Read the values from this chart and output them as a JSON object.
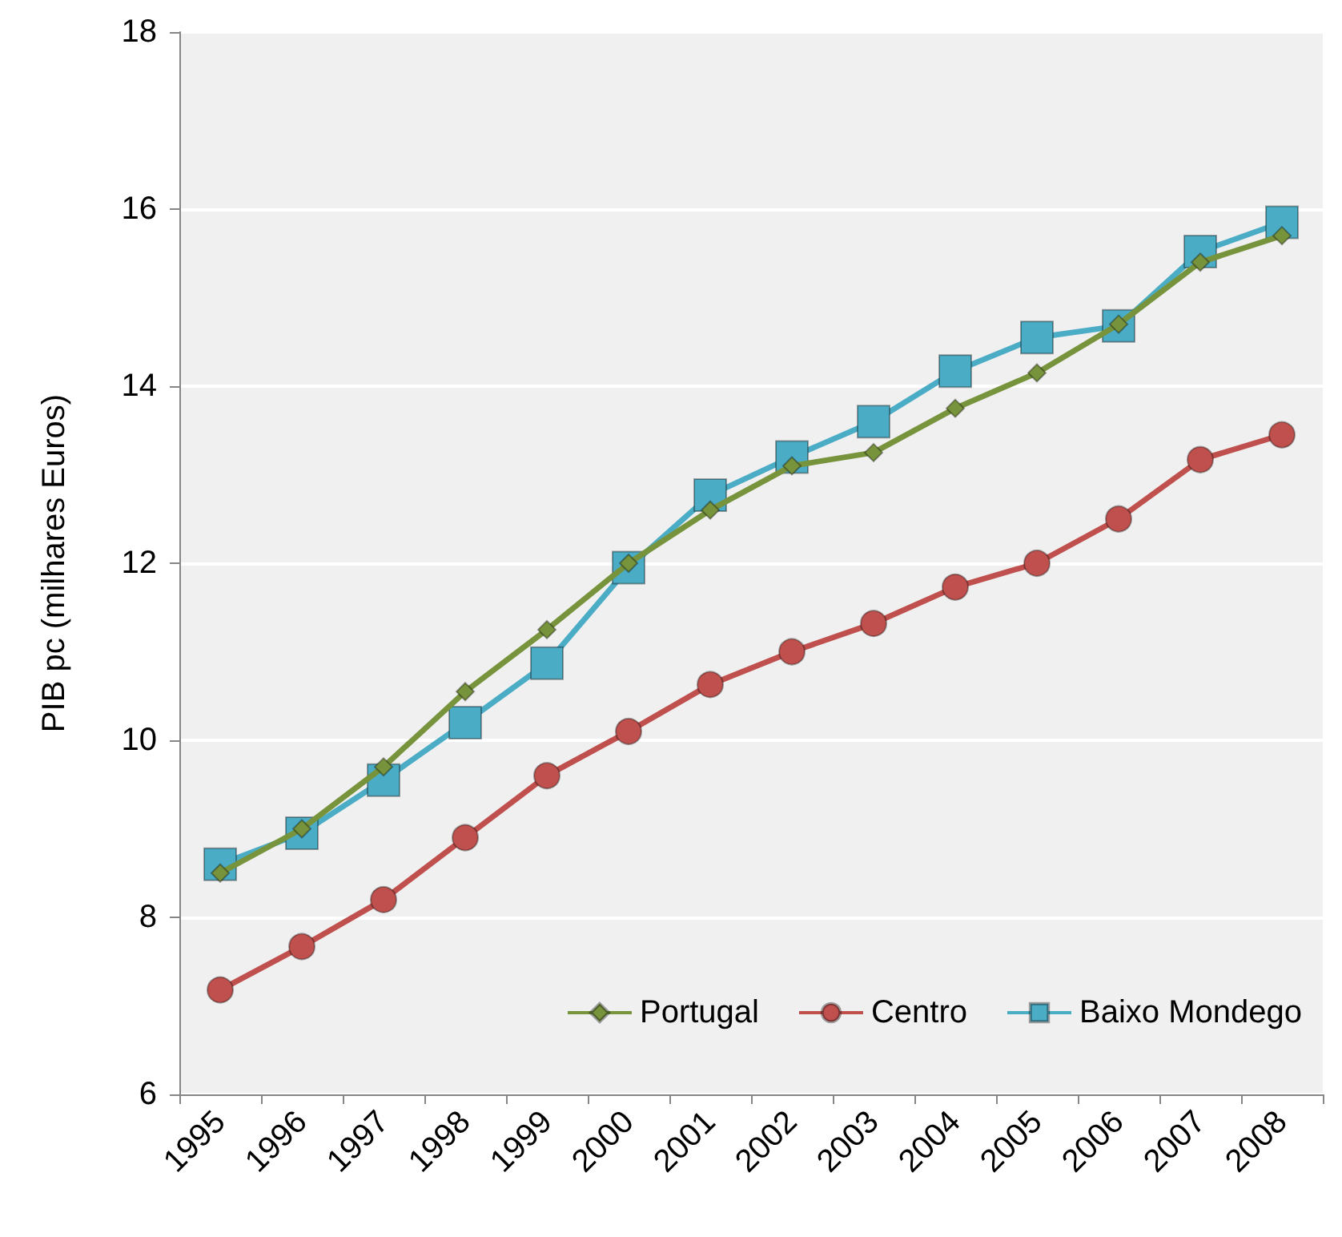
{
  "chart_data": {
    "type": "line",
    "ylabel": "PIB pc (milhares Euros)",
    "categories": [
      "1995",
      "1996",
      "1997",
      "1998",
      "1999",
      "2000",
      "2001",
      "2002",
      "2003",
      "2004",
      "2005",
      "2006",
      "2007",
      "2008"
    ],
    "series": [
      {
        "name": "Portugal",
        "color": "#77933c",
        "marker": "diamond",
        "values": [
          8.5,
          9.0,
          9.7,
          10.55,
          11.25,
          12.0,
          12.6,
          13.1,
          13.25,
          13.75,
          14.15,
          14.7,
          15.4,
          15.7
        ]
      },
      {
        "name": "Centro",
        "color": "#c0504d",
        "marker": "circle",
        "values": [
          7.18,
          7.67,
          8.2,
          8.9,
          9.6,
          10.1,
          10.63,
          11.0,
          11.32,
          11.73,
          12.0,
          12.5,
          13.17,
          13.45
        ]
      },
      {
        "name": "Baixo Mondego",
        "color": "#4bacc6",
        "marker": "square",
        "values": [
          8.6,
          8.95,
          9.55,
          10.2,
          10.87,
          11.95,
          12.77,
          13.2,
          13.6,
          14.17,
          14.55,
          14.68,
          15.52,
          15.85
        ]
      }
    ],
    "ylim": [
      6,
      18
    ],
    "yticks": [
      6,
      8,
      10,
      12,
      14,
      16,
      18
    ],
    "grid": "y",
    "legend": "bottom right"
  }
}
